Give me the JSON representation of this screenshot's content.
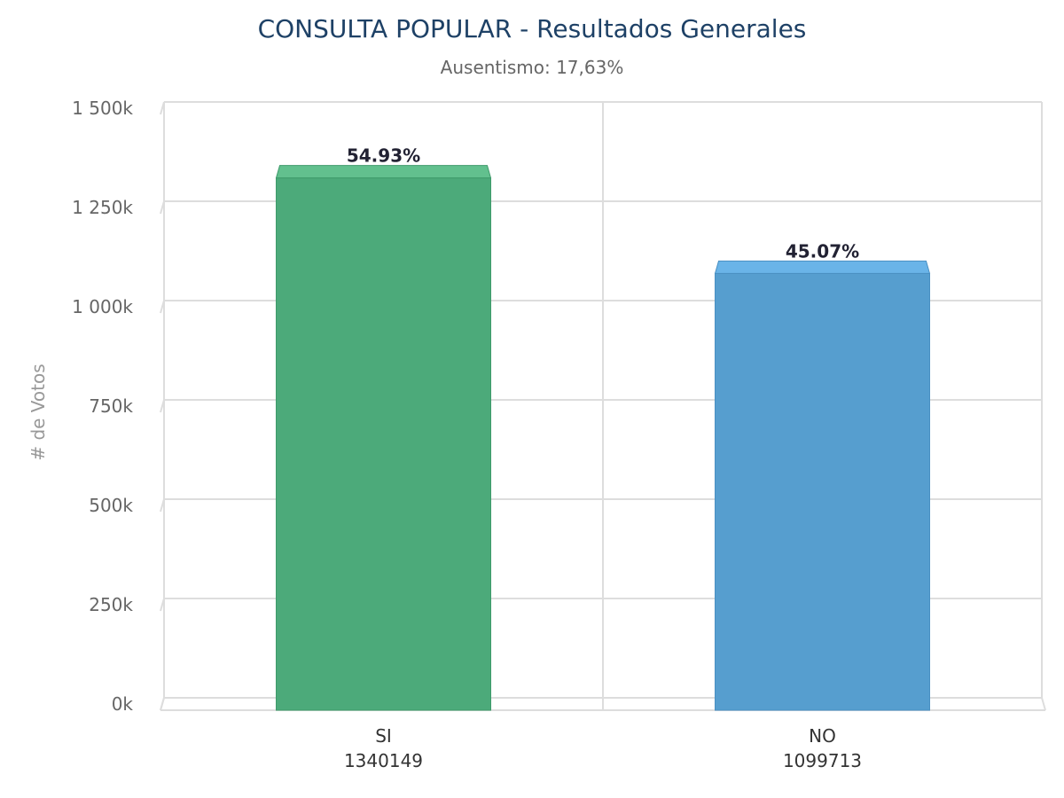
{
  "chart_data": {
    "type": "bar",
    "title": "CONSULTA POPULAR - Resultados Generales",
    "subtitle": "Ausentismo: 17,63%",
    "ylabel": "# de Votos",
    "xlabel": "",
    "ylim": [
      0,
      1500000
    ],
    "yticks": [
      0,
      250000,
      500000,
      750000,
      1000000,
      1250000,
      1500000
    ],
    "ytick_labels": [
      "0k",
      "250k",
      "500k",
      "750k",
      "1 000k",
      "1 250k",
      "1 500k"
    ],
    "grid": true,
    "legend": "none",
    "categories": [
      "SI",
      "NO"
    ],
    "values": [
      1340149,
      1099713
    ],
    "value_labels": [
      "1340149",
      "1099713"
    ],
    "data_labels": [
      "54.93%",
      "45.07%"
    ],
    "colors": [
      "#4caa7a",
      "#569ecf"
    ],
    "top_colors": [
      "#62c08e",
      "#6ab4e8"
    ],
    "edge_colors": [
      "#3f9a6b",
      "#4a90c2"
    ]
  }
}
